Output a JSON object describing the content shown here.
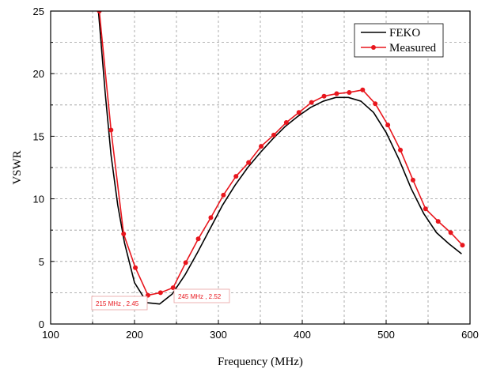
{
  "chart_data": {
    "type": "line",
    "title": "",
    "xlabel": "Frequency (MHz)",
    "ylabel": "VSWR",
    "xlim": [
      100,
      600
    ],
    "ylim": [
      0,
      25
    ],
    "x_ticks": [
      100,
      200,
      300,
      400,
      500,
      600
    ],
    "y_ticks": [
      0,
      5,
      10,
      15,
      20,
      25
    ],
    "x_tick_labels": [
      "100",
      "200",
      "300",
      "400",
      "500",
      "600"
    ],
    "y_tick_labels": [
      "0",
      "5",
      "10",
      "15",
      "20",
      "25"
    ],
    "grid": true,
    "legend_position": "top-right",
    "series": [
      {
        "name": "FEKO",
        "color": "#000000",
        "marker": "none",
        "x": [
          157,
          165,
          172,
          180,
          188,
          200,
          215,
          230,
          245,
          260,
          275,
          290,
          305,
          320,
          335,
          350,
          365,
          380,
          395,
          410,
          425,
          440,
          455,
          470,
          485,
          500,
          515,
          530,
          545,
          560,
          575,
          590
        ],
        "y": [
          25,
          18.5,
          13.5,
          9.5,
          6.5,
          3.3,
          1.7,
          1.6,
          2.4,
          3.9,
          5.7,
          7.6,
          9.5,
          11.1,
          12.5,
          13.7,
          14.8,
          15.8,
          16.6,
          17.3,
          17.8,
          18.1,
          18.1,
          17.8,
          16.9,
          15.3,
          13.2,
          10.8,
          8.8,
          7.3,
          6.4,
          5.6
        ]
      },
      {
        "name": "Measured",
        "color": "#e8161d",
        "marker": "circle",
        "x": [
          158,
          172,
          187,
          201,
          216,
          231,
          246,
          261,
          276,
          291,
          306,
          321,
          336,
          351,
          366,
          381,
          396,
          411,
          426,
          441,
          456,
          472,
          487,
          502,
          517,
          532,
          547,
          562,
          577,
          591
        ],
        "y": [
          25,
          15.5,
          7.2,
          4.5,
          2.3,
          2.5,
          2.9,
          4.9,
          6.8,
          8.5,
          10.3,
          11.8,
          12.9,
          14.2,
          15.1,
          16.1,
          16.9,
          17.7,
          18.2,
          18.4,
          18.5,
          18.7,
          17.6,
          15.9,
          13.9,
          11.5,
          9.2,
          8.2,
          7.3,
          6.3
        ]
      }
    ],
    "annotations": [
      {
        "text": "215 MHz , 2.45",
        "x": 215,
        "y": 2.45
      },
      {
        "text": "245 MHz , 2.52",
        "x": 245,
        "y": 2.52
      }
    ]
  }
}
